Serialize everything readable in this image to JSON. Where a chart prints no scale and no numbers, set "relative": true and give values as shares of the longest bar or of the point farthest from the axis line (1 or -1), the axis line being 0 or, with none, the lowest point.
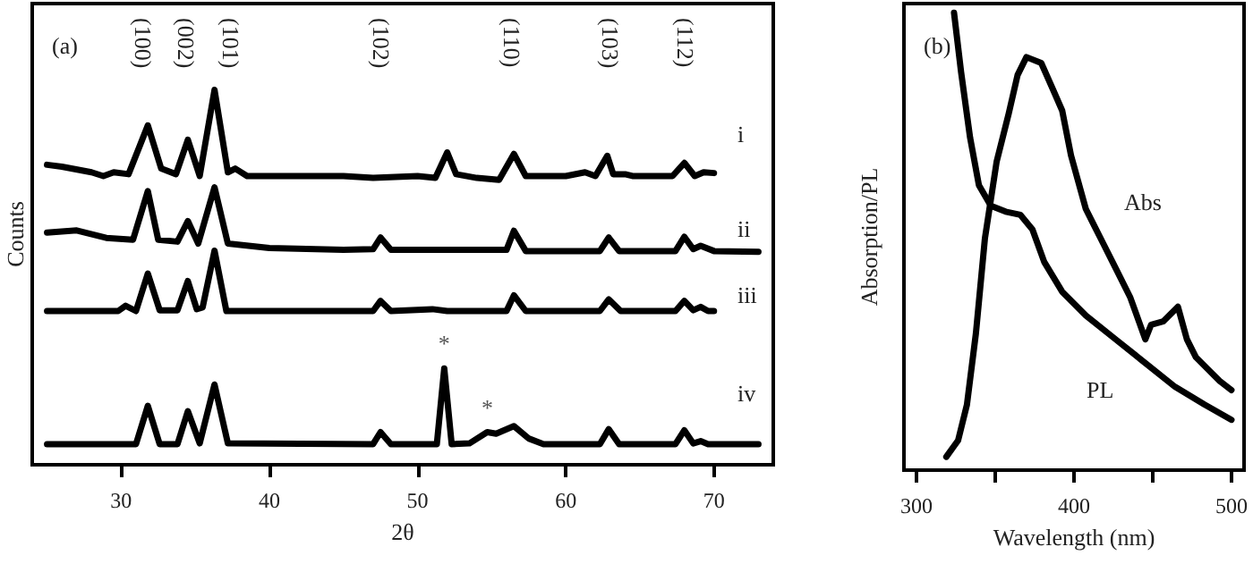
{
  "chart_data": [
    {
      "type": "line",
      "title": "(a)",
      "xlabel": "2θ",
      "ylabel": "Counts",
      "relative": true,
      "marker": "none",
      "xlim": [
        24,
        74
      ],
      "xticks": [
        30,
        40,
        50,
        60,
        70
      ],
      "series": [
        {
          "name": "i",
          "color": "#000000",
          "x": [
            25,
            26,
            28,
            28.8,
            29.5,
            30.5,
            31.8,
            32.7,
            33.7,
            34.5,
            35.3,
            36.3,
            37.2,
            37.7,
            38.5,
            42,
            45,
            47,
            50,
            51.2,
            52,
            52.6,
            54,
            55.5,
            56.5,
            57.3,
            60,
            61.3,
            62,
            62.8,
            63.2,
            64,
            64.5,
            67.2,
            68,
            68.7,
            69.3,
            70
          ],
          "values": [
            0.8,
            0.795,
            0.78,
            0.77,
            0.78,
            0.775,
            0.905,
            0.79,
            0.775,
            0.867,
            0.77,
            1.0,
            0.78,
            0.79,
            0.77,
            0.77,
            0.77,
            0.765,
            0.77,
            0.765,
            0.833,
            0.775,
            0.765,
            0.76,
            0.829,
            0.77,
            0.77,
            0.78,
            0.77,
            0.824,
            0.775,
            0.775,
            0.77,
            0.77,
            0.805,
            0.77,
            0.78,
            0.778
          ]
        },
        {
          "name": "ii",
          "color": "#000000",
          "x": [
            25,
            27,
            29,
            30.8,
            31.8,
            32.5,
            33.8,
            34.5,
            35.2,
            36.3,
            37.2,
            40,
            45,
            47,
            47.5,
            48.2,
            56,
            56.5,
            57.3,
            62.3,
            62.9,
            63.6,
            67.4,
            68,
            68.6,
            69.1,
            70,
            73
          ],
          "values": [
            0.619,
            0.625,
            0.605,
            0.6,
            0.73,
            0.6,
            0.595,
            0.65,
            0.59,
            0.74,
            0.59,
            0.578,
            0.573,
            0.575,
            0.606,
            0.573,
            0.573,
            0.624,
            0.57,
            0.57,
            0.606,
            0.57,
            0.57,
            0.608,
            0.575,
            0.584,
            0.57,
            0.568
          ]
        },
        {
          "name": "iii",
          "color": "#000000",
          "x": [
            25,
            29.8,
            30.3,
            31,
            31.8,
            32.6,
            33.8,
            34.5,
            35.1,
            35.5,
            36.3,
            37.1,
            47,
            47.5,
            48.2,
            51,
            52,
            56,
            56.5,
            57.3,
            62.3,
            62.9,
            63.7,
            67.4,
            68,
            68.6,
            69.1,
            69.6,
            70
          ],
          "values": [
            0.41,
            0.41,
            0.424,
            0.41,
            0.51,
            0.412,
            0.412,
            0.49,
            0.415,
            0.42,
            0.571,
            0.41,
            0.41,
            0.437,
            0.41,
            0.415,
            0.41,
            0.41,
            0.452,
            0.41,
            0.41,
            0.441,
            0.41,
            0.41,
            0.437,
            0.412,
            0.421,
            0.41,
            0.41
          ]
        },
        {
          "name": "iv",
          "color": "#000000",
          "x": [
            25,
            30,
            31,
            31.8,
            32.6,
            33.8,
            34.5,
            35.3,
            36.3,
            37.2,
            47,
            47.5,
            48.2,
            51.3,
            51.8,
            52.3,
            53.5,
            54.7,
            55.3,
            56.5,
            57.5,
            58.5,
            62.3,
            62.9,
            63.6,
            67.4,
            68,
            68.6,
            69.1,
            69.6,
            73
          ],
          "values": [
            0.055,
            0.055,
            0.055,
            0.157,
            0.055,
            0.055,
            0.143,
            0.057,
            0.214,
            0.057,
            0.055,
            0.087,
            0.055,
            0.055,
            0.257,
            0.055,
            0.057,
            0.087,
            0.083,
            0.103,
            0.07,
            0.055,
            0.055,
            0.095,
            0.055,
            0.055,
            0.092,
            0.057,
            0.063,
            0.055,
            0.055
          ]
        }
      ],
      "annotations": [
        "(100)",
        "(002)",
        "(101)",
        "(102)",
        "(110)",
        "(103)",
        "(112)",
        {
          "text": "*",
          "x": 51.8,
          "y": 0.257
        },
        {
          "text": "*",
          "x": 54.7,
          "y": 0.087
        }
      ]
    },
    {
      "type": "line",
      "title": "(b)",
      "xlabel": "Wavelength (nm)",
      "ylabel": "Absorption/PL",
      "relative": true,
      "marker": "none",
      "xlim": [
        292,
        508
      ],
      "xticks": [
        300,
        {
          "value": 350,
          "label": null
        },
        400,
        {
          "value": 450,
          "label": null
        },
        500
      ],
      "series": [
        {
          "name": "Abs",
          "color": "#000000",
          "x": [
            318.9,
            326.4,
            332,
            337.7,
            343.4,
            350.9,
            358.5,
            364.2,
            369.8,
            379.2,
            386.8,
            392.5,
            398.1,
            407.5,
            417,
            426.4,
            435.8,
            445.3,
            449,
            456.6,
            466,
            471.7,
            477.4,
            484.9,
            492.5,
            500
          ],
          "values": [
            0.029,
            0.065,
            0.143,
            0.299,
            0.506,
            0.675,
            0.779,
            0.864,
            0.903,
            0.89,
            0.831,
            0.786,
            0.688,
            0.571,
            0.506,
            0.442,
            0.377,
            0.286,
            0.318,
            0.325,
            0.357,
            0.286,
            0.247,
            0.221,
            0.195,
            0.175
          ]
        },
        {
          "name": "PL",
          "color": "#000000",
          "x": [
            323.8,
            328.3,
            334,
            339.6,
            347.2,
            356.6,
            366,
            373.6,
            381.1,
            392.5,
            407.5,
            426.4,
            445.3,
            464.2,
            483,
            500
          ],
          "values": [
            1.0,
            0.87,
            0.727,
            0.623,
            0.578,
            0.565,
            0.558,
            0.526,
            0.455,
            0.39,
            0.338,
            0.286,
            0.234,
            0.182,
            0.143,
            0.11
          ]
        }
      ]
    }
  ]
}
